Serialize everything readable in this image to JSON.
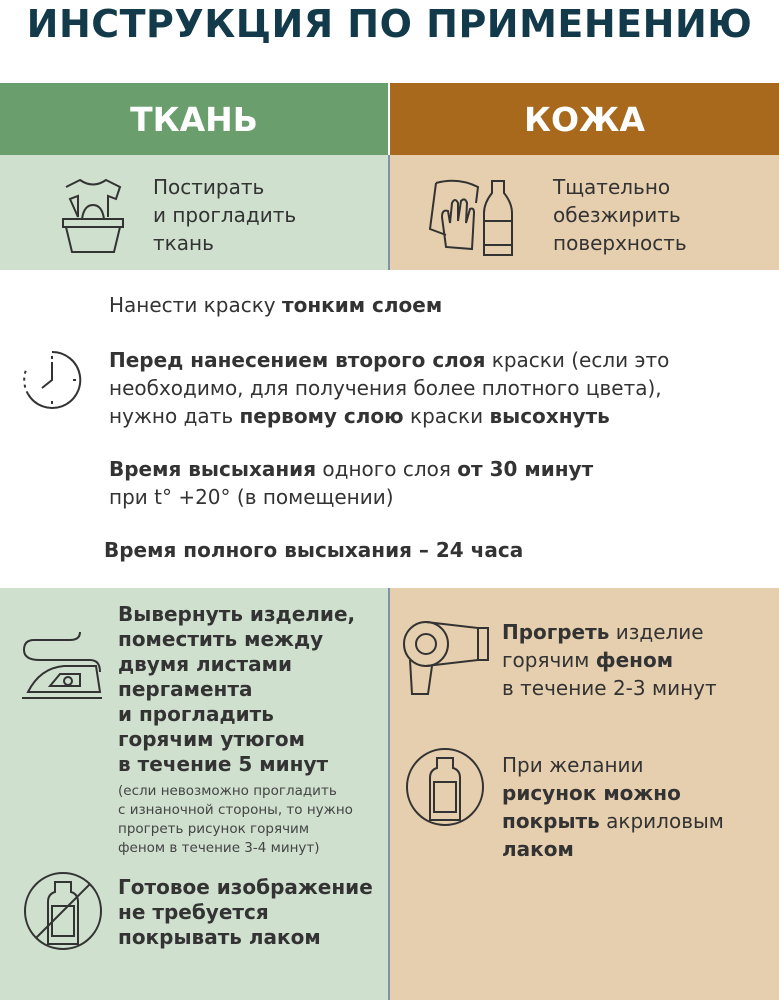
{
  "title": "ИНСТРУКЦИЯ ПО ПРИМЕНЕНИЮ",
  "colors": {
    "title": "#123a4a",
    "fabric": "#6b9e6d",
    "leather": "#a9691d",
    "fabric_light": "#cfe0cf",
    "leather_light": "#e6cfae"
  },
  "fabric": {
    "header": "ТКАНЬ",
    "prep": {
      "icon": "tshirt-basin-icon",
      "lines": [
        "Постирать",
        "и прогладить",
        "ткань"
      ]
    },
    "fix": {
      "icon": "iron-icon",
      "lines": [
        "Вывернуть изделие,",
        "поместить между",
        "двумя листами",
        "пергамента",
        "и прогладить",
        "горячим утюгом",
        "в течение 5 минут"
      ],
      "note": [
        "(если невозможно прогладить",
        "с изнаночной стороны, то нужно",
        "прогреть рисунок горячим",
        "феном в течение 3-4 минут)"
      ]
    },
    "varnish": {
      "icon": "no-varnish-bottle-icon",
      "lines": [
        "Готовое изображение",
        "не требуется",
        "покрывать лаком"
      ]
    }
  },
  "leather": {
    "header": "КОЖА",
    "prep": {
      "icon": "hand-cloth-bottle-icon",
      "lines": [
        "Тщательно",
        "обезжирить",
        "поверхность"
      ]
    },
    "fix": {
      "icon": "hair-dryer-icon",
      "l1b": "Прогреть",
      "l1": " изделие",
      "l2": "горячим ",
      "l2b": "феном",
      "l3": "в течение 2-3 минут"
    },
    "varnish": {
      "icon": "varnish-bottle-icon",
      "l1": "При желании",
      "l2b": "рисунок можно",
      "l3b": "покрыть",
      "l3": " акриловым",
      "l4b": "лаком"
    }
  },
  "general": {
    "thin_a": "Нанести краску ",
    "thin_b": "тонким слоем",
    "clock_icon": "clock-icon",
    "second": {
      "a": "Перед нанесением второго слоя",
      "b": " краски (если это",
      "c": "необходимо, для получения более плотного цвета),",
      "d": "нужно дать ",
      "e": "первому слою",
      "f": " краски ",
      "g": "высохнуть"
    },
    "dry": {
      "a": "Время высыхания",
      "b": " одного слоя ",
      "c": "от 30 минут",
      "d": "при t° +20° (в помещении)"
    },
    "full": "Время полного высыхания – 24 часа"
  }
}
